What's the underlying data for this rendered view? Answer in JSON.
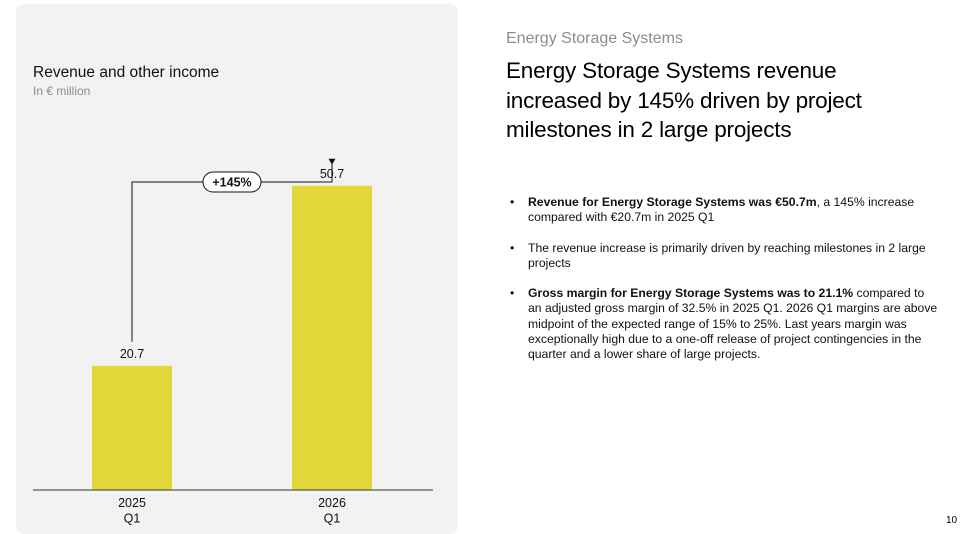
{
  "chart_data": {
    "type": "bar",
    "title": "Revenue and other income",
    "subtitle": "In € million",
    "categories": [
      [
        "2025",
        "Q1"
      ],
      [
        "2026",
        "Q1"
      ]
    ],
    "values": [
      20.7,
      50.7
    ],
    "value_labels": [
      "20.7",
      "50.7"
    ],
    "change_label": "+145%",
    "bar_color": "#e3d73a",
    "ylim": [
      0,
      60
    ],
    "grid": false
  },
  "section_label": "Energy Storage Systems",
  "headline": "Energy Storage Systems revenue increased by 145% driven by project milestones in 2 large projects",
  "bullets": [
    {
      "bold": "Revenue for Energy Storage Systems was €50.7m",
      "text": ", a 145% increase compared with €20.7m in 2025 Q1"
    },
    {
      "bold": "",
      "text": "The revenue increase is primarily driven by reaching milestones in 2 large projects"
    },
    {
      "bold": "Gross margin for Energy Storage Systems was to 21.1%",
      "text": " compared to an adjusted gross margin of 32.5% in 2025 Q1. 2026 Q1 margins are above midpoint of the expected range of 15% to 25%. Last years margin was exceptionally high due to a one-off release of project contingencies in the quarter and a lower share of large projects."
    }
  ],
  "bullet_glyph": "•",
  "page_number": "10"
}
